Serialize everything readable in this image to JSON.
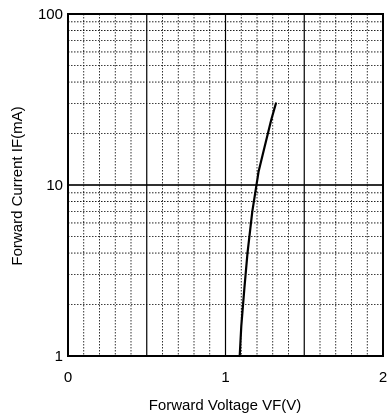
{
  "chart_data": {
    "type": "line",
    "title": "",
    "xlabel": "Forward Voltage VF(V)",
    "ylabel": "Forward Current IF(mA)",
    "xlim": [
      0,
      2
    ],
    "ylim": [
      1,
      100
    ],
    "yscale": "log",
    "grid": true,
    "x_ticks": [
      {
        "value": 0,
        "label": "0"
      },
      {
        "value": 1,
        "label": "1"
      },
      {
        "value": 2,
        "label": "2"
      }
    ],
    "y_ticks": [
      {
        "value": 1,
        "label": "1"
      },
      {
        "value": 10,
        "label": "10"
      },
      {
        "value": 100,
        "label": "100"
      }
    ],
    "series": [
      {
        "color": "#000000",
        "x": [
          1.09,
          1.1,
          1.12,
          1.14,
          1.17,
          1.21,
          1.25,
          1.29,
          1.32
        ],
        "y": [
          1,
          1.5,
          2.5,
          4,
          7,
          12,
          17,
          24,
          30
        ]
      }
    ]
  }
}
